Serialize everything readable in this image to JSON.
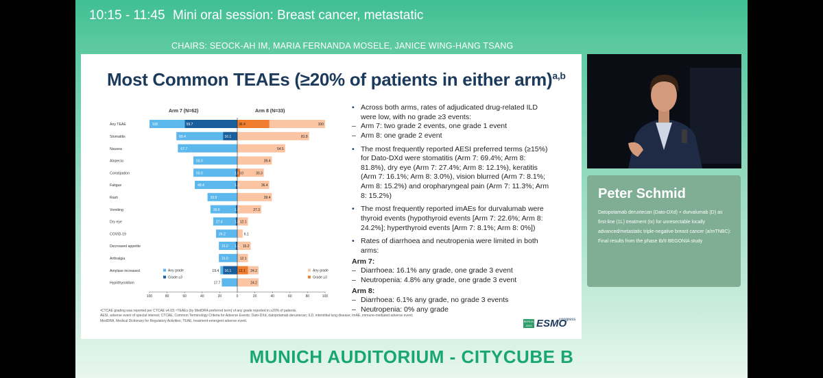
{
  "session": {
    "time": "10:15 - 11:45",
    "title": "Mini oral session: Breast cancer, metastatic",
    "chairs": "CHAIRS: SEOCK-AH IM, MARIA FERNANDA MOSELE, JANICE WING-HANG TSANG"
  },
  "slide": {
    "title": "Most Common TEAEs (≥20% of patients in either arm)",
    "title_sup": "a,b",
    "arm7_header": "Arm 7 (N=62)",
    "arm8_header": "Arm 8 (N=33)",
    "bullets": [
      {
        "text": "Across both arms, rates of adjudicated drug-related ILD were low, with no grade ≥3 events:",
        "subs": [
          "Arm 7: two grade 2 events, one grade 1 event",
          "Arm 8: one grade 2 event"
        ]
      },
      {
        "text": "The most frequently reported AESI preferred terms (≥15%) for Dato-DXd were stomatitis (Arm 7: 69.4%; Arm 8: 81.8%), dry eye (Arm 7: 27.4%; Arm 8: 12.1%), keratitis (Arm 7: 16.1%; Arm 8: 3.0%), vision blurred (Arm 7: 8.1%; Arm 8: 15.2%) and oropharyngeal pain (Arm 7: 11.3%; Arm 8: 15.2%)",
        "subs": []
      },
      {
        "text": "The most frequently reported imAEs for durvalumab were thyroid events (hypothyroid events [Arm 7: 22.6%; Arm 8: 24.2%]; hyperthyroid events [Arm 7: 8.1%; Arm 8: 0%])",
        "subs": []
      },
      {
        "text": "Rates of diarrhoea and neutropenia were limited in both arms:",
        "subs": []
      }
    ],
    "arm7_label": "Arm 7:",
    "arm7_subs": [
      "Diarrhoea: 16.1% any grade, one grade 3 event",
      "Neutropenia: 4.8% any grade, one grade 3 event"
    ],
    "arm8_label": "Arm 8:",
    "arm8_subs": [
      "Diarrhoea: 6.1% any grade, no grade 3 events",
      "Neutropenia: 0% any grade"
    ],
    "footnote1": "ᵃCTCAE grading was reported per CTCAE v4.03; ᵇTEAEs (by MedDRA preferred term) of any grade reported in ≥20% of patients.",
    "footnote2": "AESI, adverse event of special interest; CTCAE, Common Terminology Criteria for Adverse Events; Dato-DXd, datopotamab deruxtecan; ILD, interstitial lung disease; imAE, immune-mediated adverse event;",
    "footnote3": "MedDRA, Medical Dictionary for Regulatory Activities; TEAE, treatment-emergent adverse event.",
    "esmo_badge": "BERLIN 2023",
    "esmo_word": "ESMO",
    "esmo_congress": "congress"
  },
  "chart_data": {
    "type": "bar",
    "orientation": "horizontal-butterfly",
    "categories": [
      "Any TEAE",
      "Stomatitis",
      "Nausea",
      "Alopecia",
      "Constipation",
      "Fatigue",
      "Rash",
      "Vomiting",
      "Dry eye",
      "COVID-19",
      "Decreased appetite",
      "Arthralgia",
      "Amylase increased",
      "Hypothyroidism"
    ],
    "series": [
      {
        "name": "Any grade",
        "arm": "Arm 7 (N=62)",
        "values": [
          100,
          69.4,
          67.7,
          50.0,
          50.0,
          48.4,
          33.9,
          30.6,
          27.4,
          24.2,
          21.0,
          21.0,
          19.4,
          17.7
        ]
      },
      {
        "name": "Grade ≥3",
        "arm": "Arm 7 (N=62)",
        "values": [
          59.7,
          16.1,
          0,
          0,
          1.6,
          1.6,
          0,
          1.6,
          1.6,
          0,
          1.6,
          0,
          16.1,
          0
        ]
      },
      {
        "name": "Any grade",
        "arm": "Arm 8 (N=33)",
        "values": [
          100,
          81.8,
          54.5,
          39.4,
          30.3,
          36.4,
          39.4,
          27.3,
          12.1,
          6.1,
          15.2,
          12.1,
          24.2,
          24.2
        ]
      },
      {
        "name": "Grade ≥3",
        "arm": "Arm 8 (N=33)",
        "values": [
          36.4,
          0,
          0,
          0,
          3.0,
          0,
          0,
          0,
          0,
          0,
          0,
          0,
          12.1,
          0
        ]
      }
    ],
    "labels": {
      "arm7_any": [
        "100",
        "69.4",
        "67.7",
        "50.0",
        "50.0",
        "48.4",
        "33.9",
        "30.6",
        "27.4",
        "24.2",
        "21.0",
        "21.0",
        "19.4",
        "17.7"
      ],
      "arm7_g3": [
        "59.7",
        "16.1",
        "",
        "",
        "1.6",
        "1.6",
        "",
        "1.6",
        "1.6",
        "",
        "1.6",
        "",
        "16.1",
        ""
      ],
      "arm8_any": [
        "100",
        "81.8",
        "54.5",
        "39.4",
        "30.3",
        "36.4",
        "39.4",
        "27.3",
        "12.1",
        "6.1",
        "15.2",
        "12.1",
        "24.2",
        "24.2"
      ],
      "arm8_g3": [
        "36.4",
        "",
        "",
        "",
        "3.0",
        "",
        "",
        "",
        "",
        "",
        "",
        "",
        "12.1",
        ""
      ]
    },
    "xticks": [
      "100",
      "80",
      "60",
      "40",
      "20",
      "0",
      "20",
      "40",
      "60",
      "80",
      "100"
    ],
    "xlim": [
      -100,
      100
    ],
    "legend_left": [
      "Any grade",
      "Grade ≥3"
    ],
    "legend_right": [
      "Any grade",
      "Grade ≥3"
    ],
    "colors": {
      "arm7_any": "#5cb8ec",
      "arm7_g3": "#1a5e9c",
      "arm8_any": "#fbc4a3",
      "arm8_g3": "#f07d2d"
    }
  },
  "speaker": {
    "name": "Peter Schmid",
    "talk": "Datopotamab deruxtecan (Dato-DXd) + durvalumab (D) as first-line (1L) treatment (tx) for unresectable locally advanced/metastatic triple-negative breast cancer (a/mTNBC): Final results from the phase Ib/II BEGONIA study"
  },
  "venue": "MUNICH AUDITORIUM - CITYCUBE B"
}
